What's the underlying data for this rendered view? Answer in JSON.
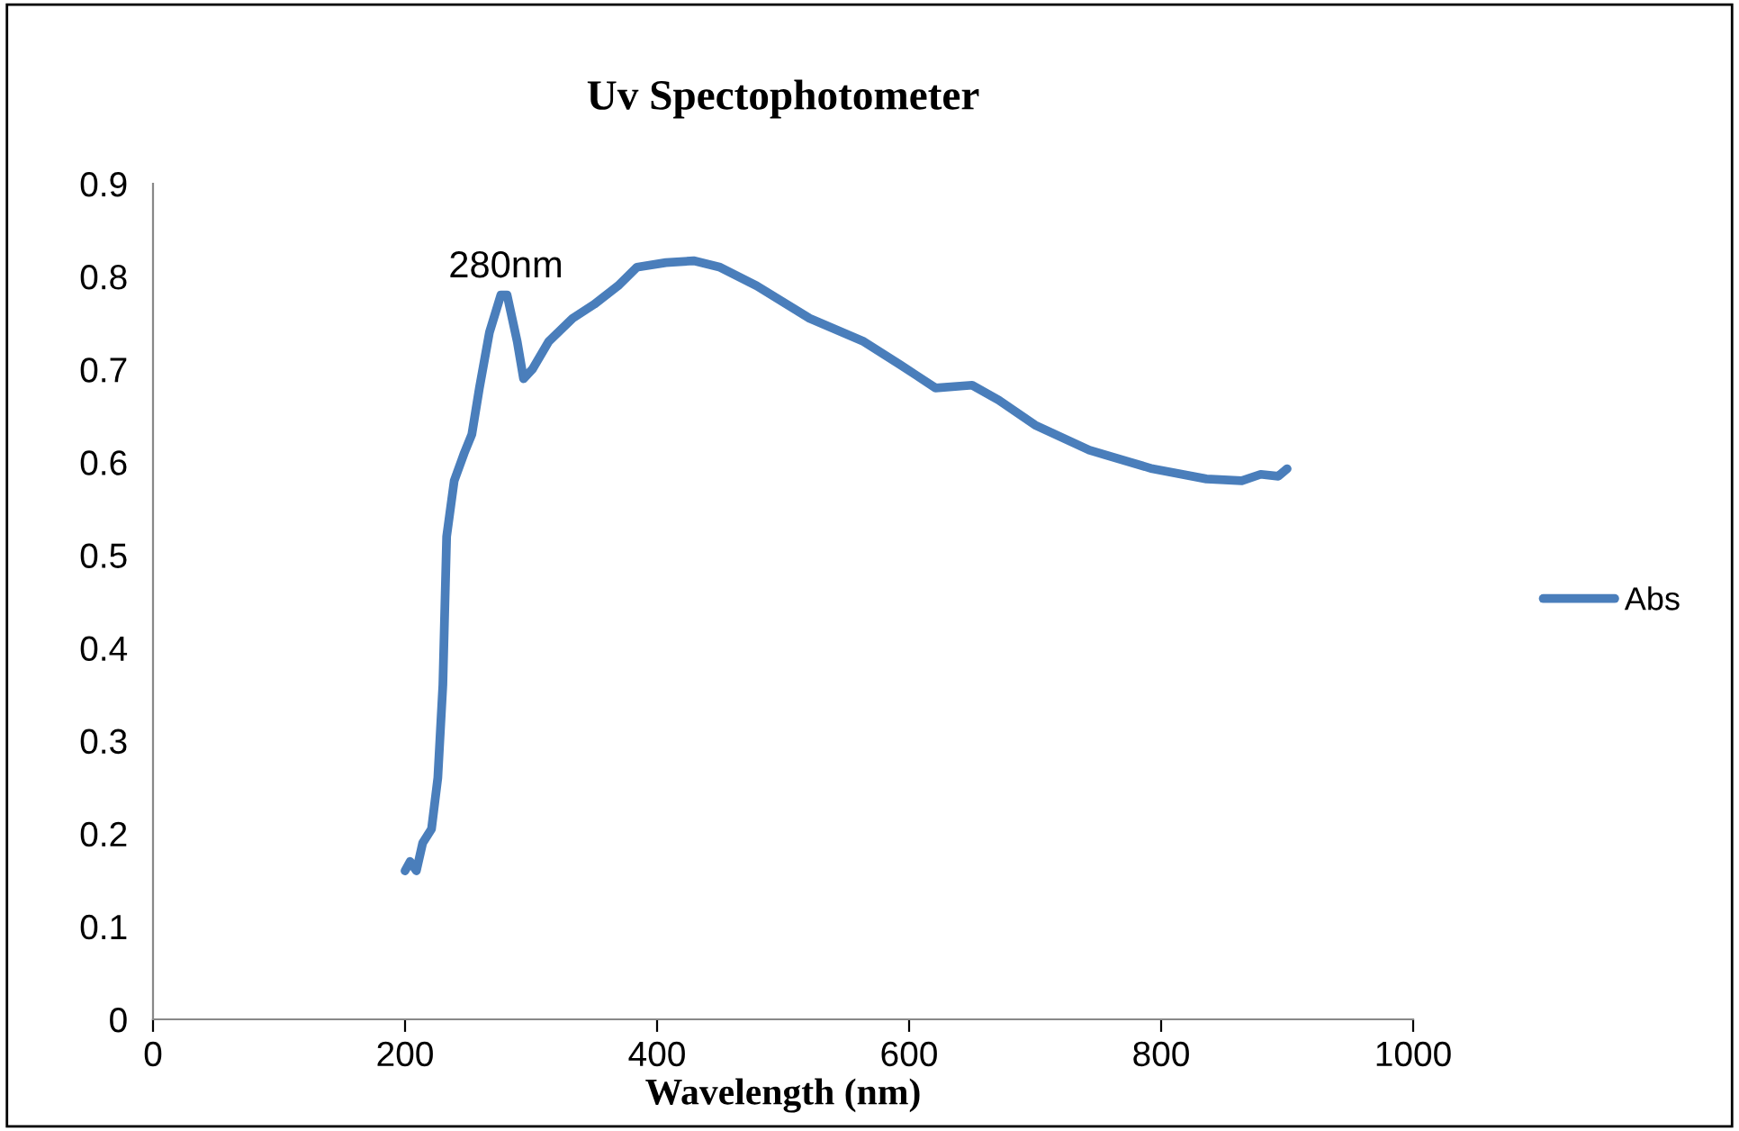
{
  "chart_data": {
    "type": "line",
    "title": "Uv Spectophotometer",
    "xlabel": "Wavelength (nm)",
    "xlim": [
      0,
      1000
    ],
    "xticks": [
      0,
      200,
      400,
      600,
      800,
      1000
    ],
    "ylim": [
      0,
      0.9
    ],
    "yticks": [
      0,
      0.1,
      0.2,
      0.3,
      0.4,
      0.5,
      0.6,
      0.7,
      0.8,
      0.9
    ],
    "grid": false,
    "legend": "right",
    "marker": "none",
    "line_style": "solid",
    "annotations": [
      {
        "text": "280nm",
        "x": 280,
        "y": 0.78
      }
    ],
    "series": [
      {
        "name": "Abs",
        "color": "#4a7ebb",
        "x": [
          200,
          204,
          209,
          214,
          221,
          226,
          230,
          233,
          239,
          247,
          253,
          259,
          267,
          276,
          281,
          289,
          294,
          301,
          314,
          333,
          350,
          369,
          384,
          407,
          429,
          450,
          479,
          521,
          564,
          593,
          621,
          650,
          671,
          700,
          743,
          793,
          836,
          864,
          879,
          893,
          900
        ],
        "values": [
          0.16,
          0.17,
          0.16,
          0.19,
          0.205,
          0.26,
          0.36,
          0.52,
          0.58,
          0.61,
          0.63,
          0.68,
          0.74,
          0.78,
          0.78,
          0.73,
          0.69,
          0.7,
          0.73,
          0.755,
          0.77,
          0.79,
          0.81,
          0.815,
          0.817,
          0.81,
          0.79,
          0.755,
          0.73,
          0.705,
          0.68,
          0.683,
          0.667,
          0.64,
          0.613,
          0.593,
          0.582,
          0.58,
          0.587,
          0.585,
          0.593
        ]
      }
    ]
  }
}
